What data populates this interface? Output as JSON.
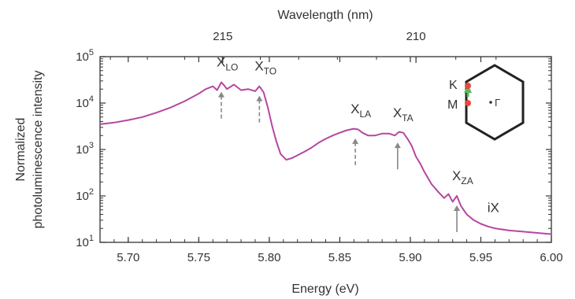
{
  "chart_data": {
    "type": "line",
    "title": "",
    "xlabel": "Energy (eV)",
    "ylabel_line1": "Normalized",
    "ylabel_line2": "photoluminescence intensity",
    "top_axis_label": "Wavelength (nm)",
    "xlim": [
      5.68,
      6.0
    ],
    "ylim": [
      10,
      100000
    ],
    "y_scale": "log",
    "grid": false,
    "legend": "none",
    "x_ticks": [
      5.7,
      5.75,
      5.8,
      5.85,
      5.9,
      5.95,
      6.0
    ],
    "x_tick_labels": [
      "5.70",
      "5.75",
      "5.80",
      "5.85",
      "5.90",
      "5.95",
      "6.00"
    ],
    "y_ticks": [
      {
        "value": 10,
        "base": "10",
        "exp": "1"
      },
      {
        "value": 100,
        "base": "10",
        "exp": "2"
      },
      {
        "value": 1000,
        "base": "10",
        "exp": "3"
      },
      {
        "value": 10000,
        "base": "10",
        "exp": "4"
      },
      {
        "value": 100000,
        "base": "10",
        "exp": "5"
      }
    ],
    "top_ticks": [
      {
        "energy": 5.767,
        "label": "215"
      },
      {
        "energy": 5.904,
        "label": "210"
      }
    ],
    "series": [
      {
        "color": "#b5479f",
        "x": [
          5.68,
          5.69,
          5.7,
          5.71,
          5.72,
          5.73,
          5.74,
          5.75,
          5.755,
          5.76,
          5.763,
          5.766,
          5.768,
          5.77,
          5.775,
          5.78,
          5.785,
          5.79,
          5.793,
          5.796,
          5.799,
          5.802,
          5.805,
          5.808,
          5.812,
          5.816,
          5.82,
          5.825,
          5.83,
          5.835,
          5.84,
          5.845,
          5.85,
          5.855,
          5.86,
          5.863,
          5.866,
          5.87,
          5.875,
          5.88,
          5.885,
          5.889,
          5.892,
          5.895,
          5.898,
          5.901,
          5.904,
          5.907,
          5.91,
          5.915,
          5.92,
          5.924,
          5.927,
          5.93,
          5.933,
          5.936,
          5.94,
          5.945,
          5.95,
          5.955,
          5.96,
          5.97,
          5.98,
          5.99,
          6.0
        ],
        "y": [
          3500,
          3800,
          4300,
          5000,
          6200,
          8000,
          11000,
          16000,
          20000,
          23000,
          19000,
          28000,
          24000,
          20000,
          25000,
          19000,
          20000,
          18000,
          23000,
          17000,
          8000,
          3200,
          1500,
          800,
          600,
          650,
          750,
          900,
          1100,
          1400,
          1700,
          2000,
          2300,
          2600,
          2800,
          2700,
          2300,
          2000,
          2000,
          2200,
          2200,
          2000,
          2400,
          2300,
          1700,
          1200,
          700,
          500,
          330,
          180,
          120,
          90,
          110,
          75,
          100,
          60,
          40,
          30,
          25,
          22,
          20,
          18,
          17,
          16,
          15
        ]
      }
    ],
    "annotations": [
      {
        "base": "X",
        "sub": "LO",
        "x": 5.766,
        "arrow_style": "dashed"
      },
      {
        "base": "X",
        "sub": "TO",
        "x": 5.793,
        "arrow_style": "dashed"
      },
      {
        "base": "X",
        "sub": "LA",
        "x": 5.861,
        "arrow_style": "dashed"
      },
      {
        "base": "X",
        "sub": "TA",
        "x": 5.891,
        "arrow_style": "solid"
      },
      {
        "base": "X",
        "sub": "ZA",
        "x": 5.933,
        "arrow_style": "solid"
      },
      {
        "base": "iX",
        "sub": "",
        "x": 5.958,
        "arrow_style": "none"
      }
    ],
    "inset": {
      "shape": "hexagon",
      "points": [
        {
          "label": "K",
          "color": "#e8483a"
        },
        {
          "label": "M",
          "color": "#e8483a"
        },
        {
          "label": "Γ",
          "color": "#333333"
        }
      ],
      "path_color": "#5cb85c"
    }
  }
}
